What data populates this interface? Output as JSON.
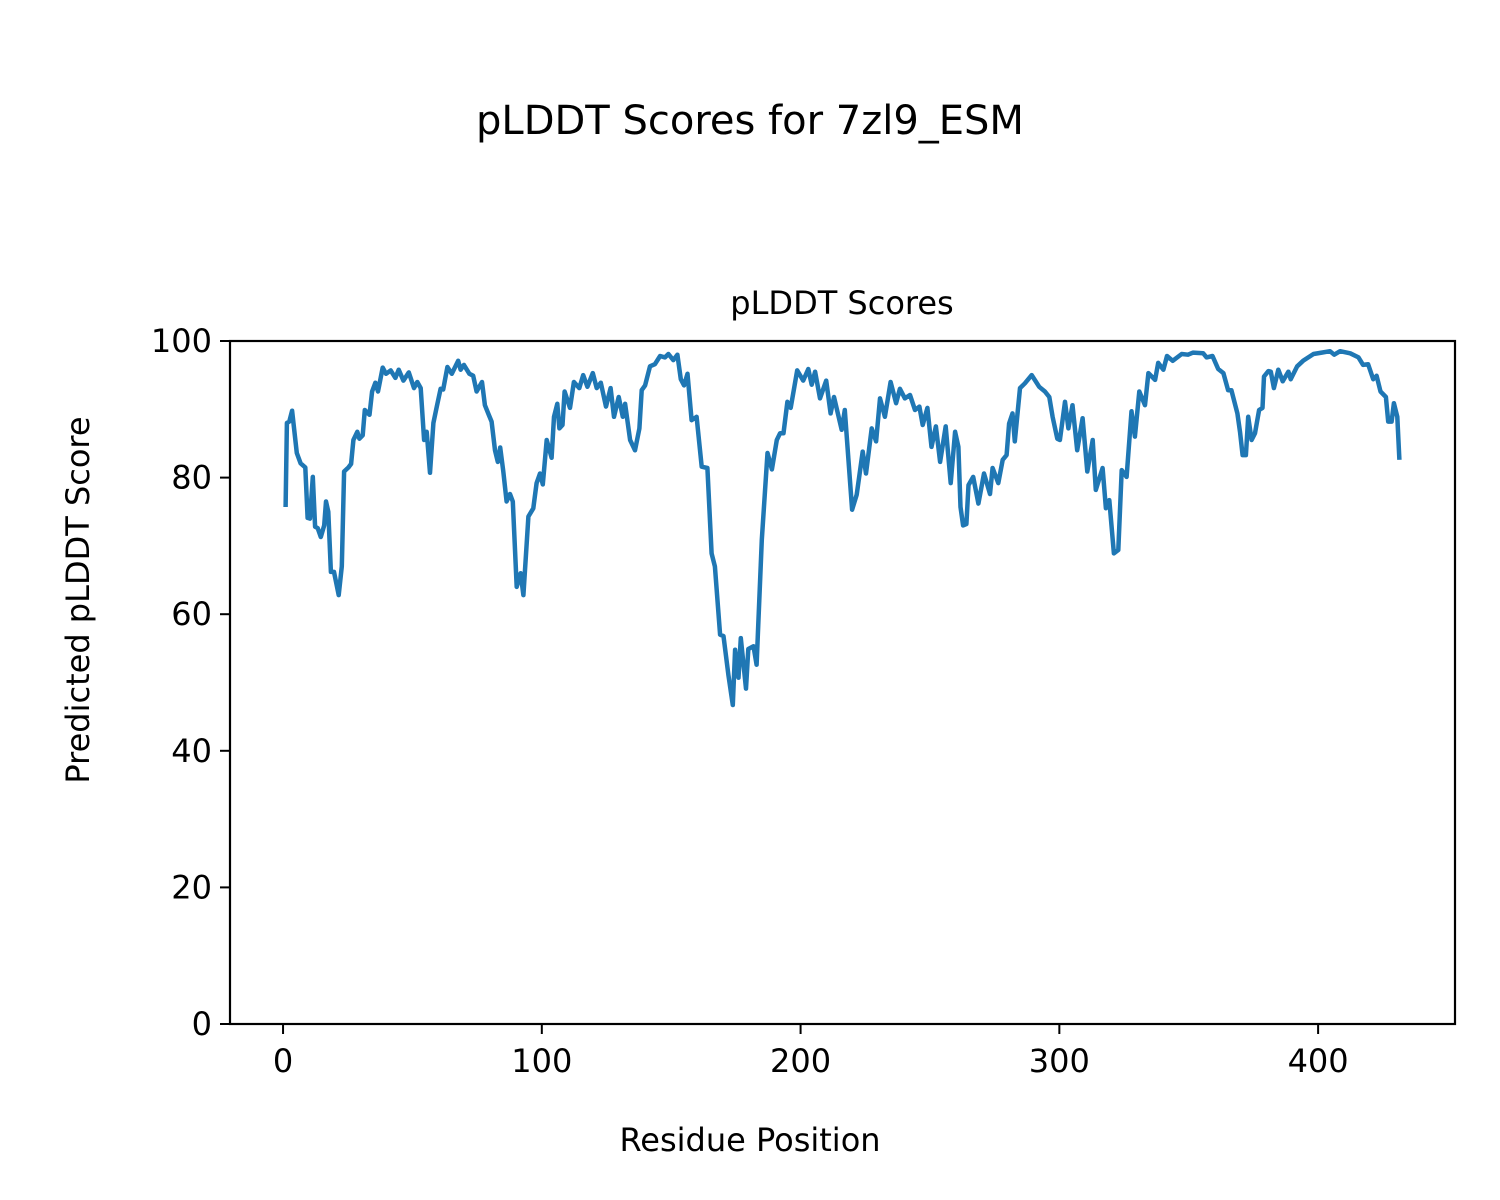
{
  "chart_data": {
    "type": "line",
    "suptitle": "pLDDT Scores for 7zl9_ESM",
    "title": "pLDDT Scores",
    "xlabel": "Residue Position",
    "ylabel": "Predicted pLDDT Score",
    "xlim": [
      -20.5,
      452.9
    ],
    "ylim": [
      0,
      100
    ],
    "xticks": [
      0,
      100,
      200,
      300,
      400
    ],
    "yticks": [
      0,
      20,
      40,
      60,
      80,
      100
    ],
    "grid": false,
    "color": "#1f77b4",
    "series": [
      {
        "name": "pLDDT",
        "x": [
          1,
          1.5,
          2.4,
          3.5,
          5.3,
          6.8,
          8.6,
          9.5,
          10.4,
          11.5,
          12.4,
          13.4,
          14.6,
          15.9,
          16.6,
          17.5,
          18.5,
          19.7,
          21.5,
          22.7,
          23.6,
          25.3,
          26.3,
          27.2,
          28.7,
          29.5,
          30.8,
          31.6,
          33.4,
          34.4,
          35.7,
          36.7,
          38.5,
          39.8,
          41.6,
          43.4,
          44.7,
          46.5,
          48.6,
          50.6,
          51.9,
          53.2,
          54.5,
          55.5,
          56.8,
          58.1,
          59.4,
          60.9,
          61.9,
          63.5,
          65.2,
          67.7,
          68.6,
          69.9,
          72,
          73.5,
          74.8,
          76.9,
          78,
          79.4,
          80.6,
          81.9,
          83,
          83.9,
          85.1,
          86.4,
          87.7,
          88.8,
          90.3,
          91.8,
          92.9,
          94.8,
          96.7,
          98,
          99.3,
          100.4,
          101.9,
          103.8,
          104.7,
          106,
          106.8,
          108,
          108.8,
          110.9,
          112.4,
          114.5,
          116,
          117.6,
          119.7,
          121.2,
          122.8,
          124.8,
          126.6,
          127.9,
          129.7,
          131.3,
          132.2,
          134.1,
          136,
          137.7,
          138.6,
          139.9,
          141.8,
          143.7,
          145.7,
          147.6,
          148.9,
          150.8,
          152.4,
          153.7,
          155,
          156.3,
          157.9,
          159.8,
          161.8,
          164,
          165.6,
          166.9,
          168.9,
          170.2,
          172.1,
          173.8,
          174.7,
          176,
          176.9,
          178.9,
          179.8,
          181.8,
          183,
          185,
          187.2,
          188.9,
          190.8,
          192.1,
          193.4,
          194.9,
          196.2,
          198.7,
          201,
          203,
          204.3,
          205.6,
          207.5,
          209.9,
          211.6,
          212.9,
          215.9,
          217.1,
          219.9,
          221.7,
          224,
          225.3,
          227.5,
          229.2,
          230.7,
          232.6,
          234.8,
          236.9,
          238.4,
          240.3,
          242.3,
          244.2,
          245.9,
          247.2,
          249,
          250.6,
          252.3,
          253.9,
          256.1,
          258,
          259.7,
          261,
          261.8,
          262.8,
          264.1,
          264.9,
          266.7,
          268.7,
          270.9,
          273.2,
          274.2,
          276.4,
          278.1,
          279.6,
          280.6,
          281.9,
          282.8,
          284.8,
          286.7,
          289.3,
          292.2,
          294.4,
          296.1,
          297.4,
          299.2,
          300.2,
          302.2,
          303.5,
          305.1,
          306.9,
          309,
          310.8,
          312.9,
          314.1,
          316.7,
          318,
          319.3,
          321.1,
          322.8,
          324.1,
          326,
          327.9,
          329.2,
          330.9,
          333.1,
          334.4,
          337,
          338.2,
          340.2,
          341.6,
          343.8,
          347.3,
          349.7,
          351.7,
          355.6,
          356.9,
          359.2,
          361.4,
          363.4,
          365.2,
          366.5,
          368.8,
          369.8,
          370.8,
          372.1,
          373,
          374.3,
          375.6,
          377.2,
          378.5,
          379.1,
          380.8,
          381.7,
          382.9,
          384.6,
          386.3,
          388.5,
          389.4,
          391.9,
          394.2,
          398.2,
          401.4,
          404.6,
          406.2,
          408.5,
          412.4,
          415.6,
          417.4,
          419.3,
          421.3,
          422.6,
          424.1,
          426.2,
          427.1,
          428.4,
          429.3,
          430.6,
          431.4
        ],
        "y": [
          75.7,
          88,
          88.2,
          89.8,
          83.6,
          82.1,
          81.5,
          74.1,
          74,
          80.1,
          72.8,
          72.6,
          71.3,
          73,
          76.5,
          75,
          66.2,
          66.2,
          62.8,
          67,
          80.9,
          81.5,
          82,
          85.5,
          86.7,
          85.7,
          86.2,
          89.9,
          89.2,
          92.6,
          93.9,
          92.6,
          96.1,
          95.2,
          95.7,
          94.6,
          95.8,
          94.2,
          95.4,
          93.1,
          94,
          93.1,
          85.5,
          86.7,
          80.7,
          88,
          90.4,
          93,
          92.9,
          96.2,
          95.2,
          97.1,
          95.8,
          96.5,
          95.2,
          94.9,
          92.6,
          94,
          90.6,
          89.3,
          88.2,
          84,
          82.3,
          84.4,
          80.9,
          76.5,
          77.6,
          76.5,
          64,
          66,
          62.8,
          74.3,
          75.5,
          79.2,
          80.6,
          79,
          85.5,
          82.9,
          88.9,
          90.8,
          87.2,
          87.7,
          92.6,
          90.2,
          94,
          93.1,
          95,
          93.3,
          95.3,
          93.1,
          93.9,
          90.4,
          93.1,
          88.9,
          91.8,
          88.9,
          90.8,
          85.5,
          84,
          87.2,
          92.8,
          93.5,
          96.3,
          96.6,
          97.8,
          97.6,
          98.1,
          97.2,
          98,
          94.4,
          93.5,
          95.2,
          88.4,
          88.9,
          81.6,
          81.4,
          68.9,
          67,
          57,
          56.8,
          51.1,
          46.7,
          54.8,
          50.7,
          56.5,
          49.1,
          54.9,
          55.3,
          52.6,
          70.9,
          83.6,
          81.2,
          85.5,
          86.5,
          86.5,
          91.1,
          90.2,
          95.7,
          94.2,
          95.9,
          93.6,
          95.5,
          91.6,
          94.2,
          89.4,
          91.8,
          87,
          89.9,
          75.3,
          77.5,
          83.8,
          80.6,
          87.2,
          85.3,
          91.6,
          88.9,
          94,
          90.9,
          93,
          91.6,
          92.1,
          89.9,
          90.4,
          87.7,
          90.2,
          84.5,
          87.5,
          82.3,
          87.5,
          79.2,
          86.7,
          84.5,
          75.7,
          73,
          73.2,
          78.9,
          80.1,
          76.2,
          80.6,
          77.6,
          81.4,
          79.2,
          82.6,
          83.3,
          87.9,
          89.4,
          85.3,
          93.1,
          93.8,
          95,
          93.3,
          92.6,
          91.8,
          88.9,
          85.7,
          85.5,
          91.1,
          87.2,
          90.6,
          84,
          88.7,
          80.9,
          85.5,
          78.2,
          81.4,
          75.5,
          76.7,
          68.9,
          69.4,
          81.1,
          80.1,
          89.7,
          86,
          92.6,
          90.6,
          95.3,
          94.3,
          96.8,
          95.8,
          97.8,
          97.1,
          98.1,
          98,
          98.3,
          98.2,
          97.6,
          97.8,
          95.9,
          95.3,
          92.8,
          92.8,
          89.4,
          86.7,
          83.3,
          83.3,
          88.9,
          85.5,
          86.5,
          89.9,
          90.2,
          94.8,
          95.6,
          95.5,
          93.1,
          95.8,
          94.1,
          95.5,
          94.4,
          96.3,
          97.1,
          98.1,
          98.3,
          98.5,
          98,
          98.5,
          98.2,
          97.6,
          96.5,
          96.6,
          94.4,
          94.9,
          92.6,
          91.8,
          88.2,
          88.2,
          90.9,
          88.9,
          82.6
        ]
      }
    ]
  }
}
